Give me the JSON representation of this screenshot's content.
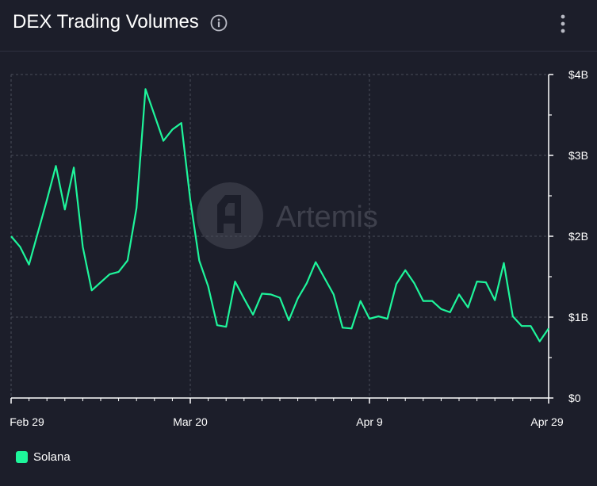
{
  "header": {
    "title": "DEX Trading Volumes",
    "info_icon": "info-circle-icon",
    "menu_icon": "vertical-dots-icon"
  },
  "watermark": {
    "text": "Artemis",
    "icon": "artemis-logo-icon"
  },
  "colors": {
    "background": "#1c1e2a",
    "series": "#1ef59b",
    "grid": "#4a4d5a"
  },
  "legend": {
    "items": [
      {
        "label": "Solana",
        "color": "#1ef59b"
      }
    ],
    "placement": "bottom-left"
  },
  "chart_data": {
    "type": "line",
    "x_start": "2024-02-29",
    "x_ticks": [
      {
        "label": "Feb 29",
        "index": 0
      },
      {
        "label": "Mar 20",
        "index": 20
      },
      {
        "label": "Apr 9",
        "index": 40
      },
      {
        "label": "Apr 29",
        "index": 60
      }
    ],
    "y_ticks": [
      {
        "label": "$0",
        "value": 0
      },
      {
        "label": "$1B",
        "value": 1
      },
      {
        "label": "$2B",
        "value": 2
      },
      {
        "label": "$3B",
        "value": 3
      },
      {
        "label": "$4B",
        "value": 4
      }
    ],
    "ylim": [
      0,
      4
    ],
    "y_unit": "billion USD",
    "grid": true,
    "series": [
      {
        "name": "Solana",
        "color": "#1ef59b",
        "values": [
          2.0,
          1.87,
          1.65,
          2.05,
          2.45,
          2.87,
          2.33,
          2.85,
          1.87,
          1.33,
          1.43,
          1.53,
          1.56,
          1.7,
          2.35,
          3.82,
          3.5,
          3.18,
          3.32,
          3.4,
          2.45,
          1.7,
          1.38,
          0.9,
          0.88,
          1.44,
          1.23,
          1.03,
          1.29,
          1.28,
          1.24,
          0.96,
          1.23,
          1.42,
          1.68,
          1.48,
          1.28,
          0.87,
          0.86,
          1.2,
          0.98,
          1.01,
          0.98,
          1.41,
          1.58,
          1.42,
          1.2,
          1.2,
          1.1,
          1.06,
          1.28,
          1.12,
          1.44,
          1.43,
          1.21,
          1.67,
          1.01,
          0.89,
          0.89,
          0.7,
          0.86
        ]
      }
    ]
  }
}
